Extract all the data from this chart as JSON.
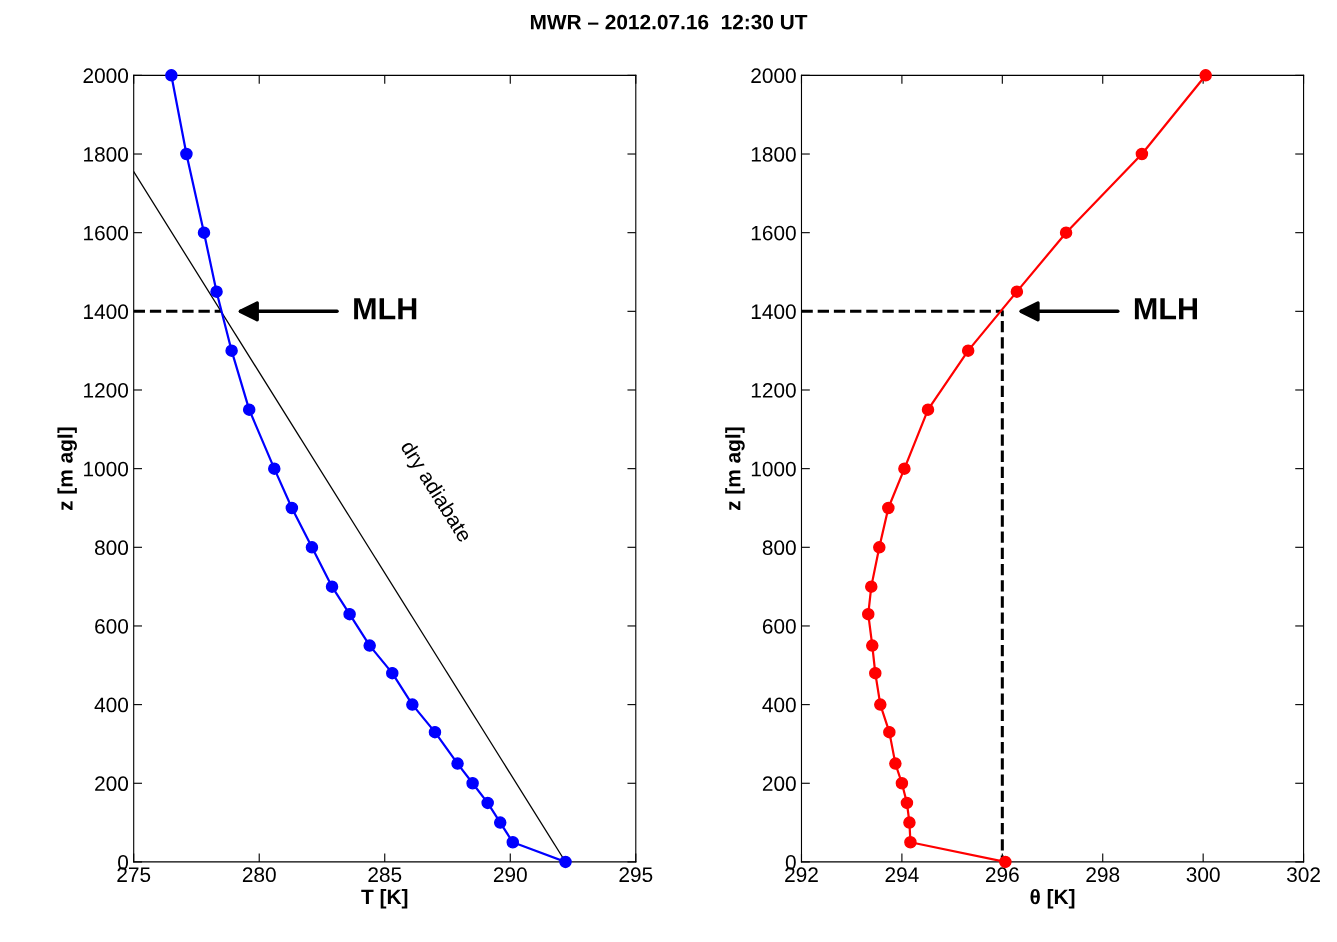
{
  "chart_data": [
    {
      "type": "line",
      "title": "MWR – 2012.07.16  12:30 UT",
      "xlabel": "T [K]",
      "ylabel": "z [m agl]",
      "xlim": [
        275,
        295
      ],
      "xticks": [
        275,
        280,
        285,
        290,
        295
      ],
      "ylim": [
        0,
        2000
      ],
      "yticks": [
        0,
        200,
        400,
        600,
        800,
        1000,
        1200,
        1400,
        1600,
        1800,
        2000
      ],
      "grid": false,
      "legend": false,
      "series": [
        {
          "color": "#0000ff",
          "marker": "circle",
          "line_style": "solid",
          "x": [
            292.2,
            290.1,
            289.6,
            289.1,
            288.5,
            287.9,
            287.0,
            286.1,
            285.3,
            284.4,
            283.6,
            282.9,
            282.1,
            281.3,
            280.6,
            279.6,
            278.9,
            278.3,
            277.8,
            277.1,
            276.5
          ],
          "values": [
            0,
            50,
            100,
            150,
            200,
            250,
            330,
            400,
            480,
            550,
            630,
            700,
            800,
            900,
            1000,
            1150,
            1300,
            1450,
            1600,
            1800,
            2000
          ]
        },
        {
          "color": "#000000",
          "marker": "none",
          "line_style": "solid",
          "x": [
            292.2,
            275
          ],
          "values": [
            0,
            1755
          ]
        },
        {
          "color": "#000000",
          "marker": "none",
          "line_style": "dashed",
          "x": [
            275,
            278.5
          ],
          "values": [
            1400,
            1400
          ]
        }
      ],
      "annotations": [
        "MLH",
        "dry adiabate"
      ]
    },
    {
      "type": "line",
      "xlabel": "θ [K]",
      "ylabel": "z [m agl]",
      "xlim": [
        292,
        302
      ],
      "xticks": [
        292,
        294,
        296,
        298,
        300,
        302
      ],
      "ylim": [
        0,
        2000
      ],
      "yticks": [
        0,
        200,
        400,
        600,
        800,
        1000,
        1200,
        1400,
        1600,
        1800,
        2000
      ],
      "grid": false,
      "legend": false,
      "series": [
        {
          "color": "#ff0000",
          "marker": "circle",
          "line_style": "solid",
          "x": [
            296.06,
            294.17,
            294.15,
            294.1,
            294.0,
            293.87,
            293.75,
            293.57,
            293.47,
            293.41,
            293.33,
            293.39,
            293.55,
            293.73,
            294.05,
            294.52,
            295.32,
            296.29,
            297.27,
            298.78,
            300.05
          ],
          "values": [
            0,
            50,
            100,
            150,
            200,
            250,
            330,
            400,
            480,
            550,
            630,
            700,
            800,
            900,
            1000,
            1150,
            1300,
            1450,
            1600,
            1800,
            2000
          ]
        },
        {
          "color": "#000000",
          "marker": "none",
          "line_style": "dashed",
          "x": [
            292,
            296,
            296
          ],
          "values": [
            1400,
            1400,
            0
          ]
        }
      ],
      "annotations": [
        "MLH"
      ]
    }
  ]
}
